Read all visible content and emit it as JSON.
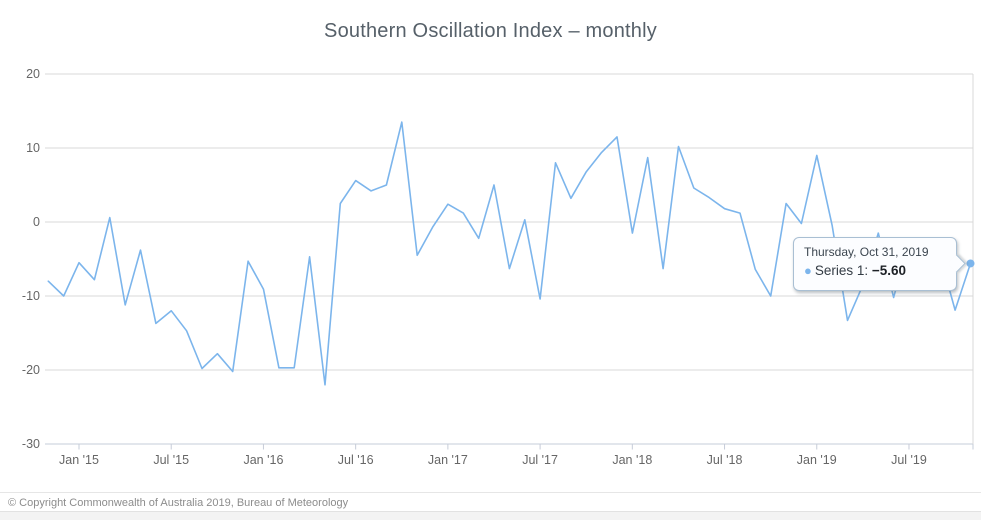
{
  "title": "Southern Oscillation Index – monthly",
  "copyright": "© Copyright Commonwealth of Australia 2019, Bureau of Meteorology",
  "tooltip": {
    "date": "Thursday, Oct 31, 2019",
    "series_label": "Series 1: ",
    "value": "−5.60",
    "bullet": "●",
    "point_index": 60
  },
  "colors": {
    "series": "#7cb5ec",
    "grid": "#d8d8d8",
    "axis": "#c6ccd8",
    "title_text": "#566069",
    "axis_text": "#666666",
    "tooltip_border": "#a9bfd3"
  },
  "chart_data": {
    "type": "line",
    "title": "Southern Oscillation Index – monthly",
    "xlabel": "",
    "ylabel": "",
    "frequency": "monthly",
    "start_month": "2014-10",
    "end_month": "2019-10",
    "ylim": [
      -30,
      20
    ],
    "y_ticks": [
      20,
      10,
      0,
      -10,
      -20,
      -30
    ],
    "y_tick_labels": [
      "20",
      "10",
      "0",
      "-10",
      "-20",
      "-30"
    ],
    "x_tick_labels": [
      "Jan '15",
      "Jul '15",
      "Jan '16",
      "Jul '16",
      "Jan '17",
      "Jul '17",
      "Jan '18",
      "Jul '18",
      "Jan '19",
      "Jul '19"
    ],
    "x_tick_month_offsets": [
      0,
      6,
      12,
      18,
      24,
      30,
      36,
      42,
      48,
      54
    ],
    "grid": "horizontal",
    "legend": "none",
    "series": [
      {
        "name": "Series 1",
        "color": "#7cb5ec",
        "values": [
          -8.0,
          -10.0,
          -5.5,
          -7.8,
          0.6,
          -11.2,
          -3.8,
          -13.7,
          -12.0,
          -14.7,
          -19.8,
          -17.8,
          -20.2,
          -5.3,
          -9.1,
          -19.7,
          -19.7,
          -4.7,
          -22.0,
          2.5,
          5.6,
          4.2,
          5.0,
          13.5,
          -4.5,
          -0.7,
          2.4,
          1.2,
          -2.2,
          5.0,
          -6.3,
          0.3,
          -10.4,
          8.0,
          3.2,
          6.8,
          9.4,
          11.5,
          -1.5,
          8.7,
          -6.3,
          10.2,
          4.6,
          3.3,
          1.8,
          1.2,
          -6.4,
          -10.0,
          2.5,
          -0.2,
          9.0,
          -0.5,
          -13.3,
          -8.5,
          -1.5,
          -10.2,
          -2.6,
          -5.2,
          -4.4,
          -11.9,
          -5.6
        ]
      }
    ]
  }
}
